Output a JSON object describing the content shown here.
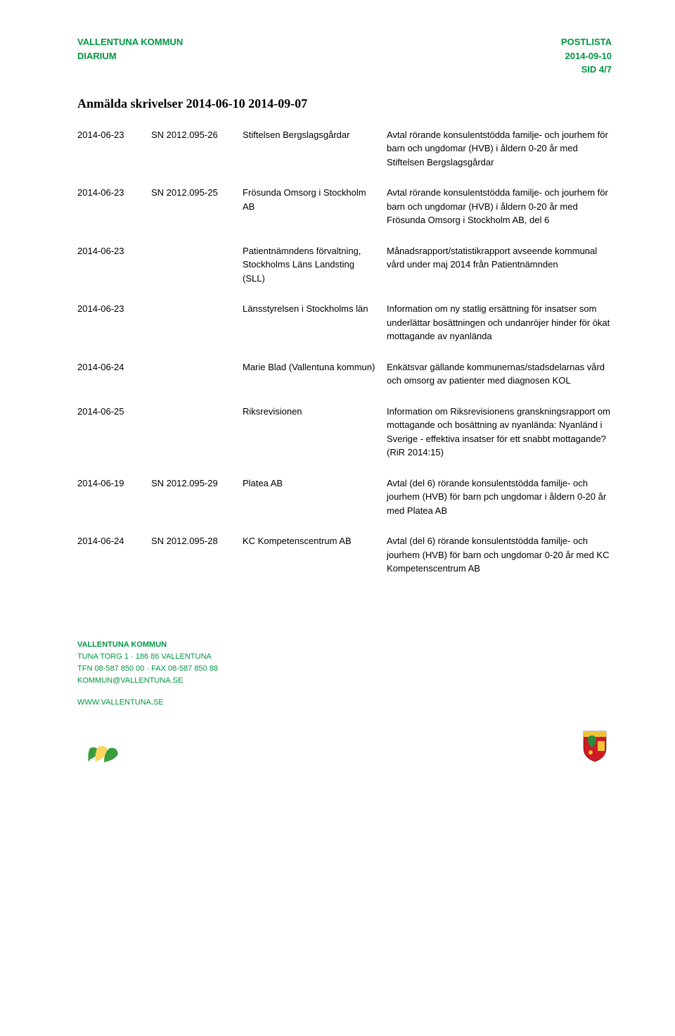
{
  "header": {
    "left_line1": "VALLENTUNA KOMMUN",
    "left_line2": "DIARIUM",
    "right_line1": "POSTLISTA",
    "right_line2": "2014-09-10",
    "right_line3": "SID 4/7",
    "color": "#009640"
  },
  "title": "Anmälda skrivelser 2014-06-10 2014-09-07",
  "entries": [
    {
      "date": "2014-06-23",
      "ref": "SN 2012.095-26",
      "org": "Stiftelsen Bergslagsgårdar",
      "desc": "Avtal rörande konsulentstödda familje- och jourhem för barn och ungdomar (HVB) i åldern 0-20 år med Stiftelsen Bergslagsgårdar"
    },
    {
      "date": "2014-06-23",
      "ref": "SN 2012.095-25",
      "org": "Frösunda Omsorg i Stockholm AB",
      "desc": "Avtal rörande konsulentstödda familje- och jourhem för barn och ungdomar (HVB) i åldern 0-20 år med Frösunda Omsorg i Stockholm AB, del 6"
    },
    {
      "date": "2014-06-23",
      "ref": "",
      "org": "Patientnämndens förvaltning, Stockholms Läns Landsting (SLL)",
      "desc": "Månadsrapport/statistikrapport avseende kommunal vård under maj 2014 från Patientnämnden"
    },
    {
      "date": "2014-06-23",
      "ref": "",
      "org": "Länsstyrelsen i Stockholms län",
      "desc": "Information om ny statlig ersättning för insatser som underlättar bosättningen och undanröjer hinder för ökat mottagande av nyanlända"
    },
    {
      "date": "2014-06-24",
      "ref": "",
      "org": "Marie Blad (Vallentuna kommun)",
      "desc": "Enkätsvar gällande kommunernas/stadsdelarnas vård och omsorg av patienter med diagnosen KOL"
    },
    {
      "date": "2014-06-25",
      "ref": "",
      "org": "Riksrevisionen",
      "desc": "Information om Riksrevisionens granskningsrapport om mottagande och bosättning av nyanlända: Nyanländ i Sverige - effektiva insatser för ett snabbt mottagande? (RiR 2014:15)"
    },
    {
      "date": "2014-06-19",
      "ref": "SN 2012.095-29",
      "org": "Platea AB",
      "desc": "Avtal (del 6) rörande konsulentstödda familje- och jourhem (HVB) för barn pch ungdomar i åldern 0-20 år med Platea AB"
    },
    {
      "date": "2014-06-24",
      "ref": "SN 2012.095-28",
      "org": "KC Kompetenscentrum AB",
      "desc": "Avtal (del 6) rörande konsulentstödda familje- och jourhem (HVB) för barn och ungdomar 0-20 år med KC Kompetenscentrum AB"
    }
  ],
  "footer": {
    "org_name": "VALLENTUNA KOMMUN",
    "address": "TUNA TORG 1 · 186 86 VALLENTUNA",
    "phone": "TFN 08-587 850 00 · FAX 08-587 850 88",
    "email": "KOMMUN@VALLENTUNA.SE",
    "www": "WWW.VALLENTUNA.SE",
    "color": "#009640"
  },
  "icons": {
    "leaf_plant": {
      "colors": {
        "green": "#3a9b3f",
        "yellow": "#f9d75e"
      }
    },
    "crest": {
      "colors": {
        "red": "#d11926",
        "gold": "#f1c437",
        "green": "#2b8a3e"
      }
    }
  }
}
